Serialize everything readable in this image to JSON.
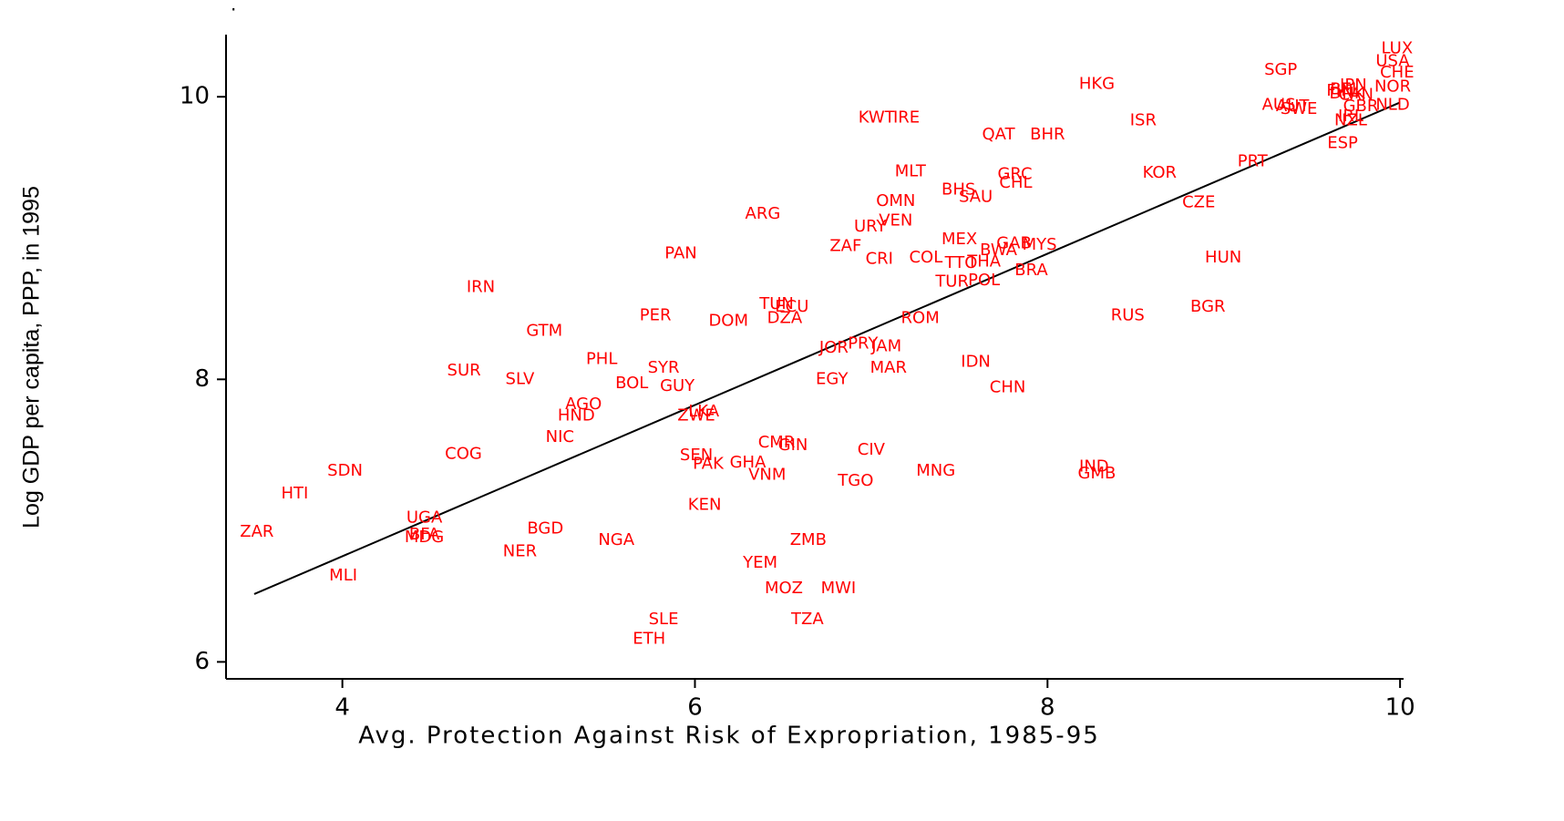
{
  "chart_data": {
    "type": "scatter",
    "title": ".",
    "x_label": "Avg. Protection Against Risk of Expropriation, 1985-95",
    "y_label": "Log GDP per capita, PPP, in 1995",
    "xlim": [
      3.34,
      10.02
    ],
    "ylim": [
      5.88,
      10.44
    ],
    "xticks": [
      4,
      6,
      8,
      10
    ],
    "yticks": [
      6,
      8,
      10
    ],
    "color": "#ff0000",
    "fit_color": "#000000",
    "fit": {
      "x": [
        3.5,
        10
      ],
      "y": [
        6.48,
        9.96
      ]
    },
    "labels": [
      "ZAR",
      "HTI",
      "SDN",
      "MLI",
      "UGA",
      "BFA",
      "MDG",
      "COG",
      "IRN",
      "SUR",
      "SLV",
      "GTM",
      "NER",
      "BGD",
      "NIC",
      "AGO",
      "HND",
      "PHL",
      "PER",
      "BOL",
      "SYR",
      "GUY",
      "NGA",
      "PAN",
      "DOM",
      "ZWE",
      "LKA",
      "SEN",
      "PAK",
      "GHA",
      "KEN",
      "VNM",
      "CMR",
      "GIN",
      "SLE",
      "ETH",
      "YEM",
      "MOZ",
      "MWI",
      "ZMB",
      "TZA",
      "ARG",
      "TUN",
      "ECU",
      "DZA",
      "EGY",
      "JOR",
      "PRY",
      "JAM",
      "MAR",
      "TGO",
      "CIV",
      "MNG",
      "ZAF",
      "CRI",
      "URY",
      "VEN",
      "OMN",
      "MLT",
      "KWT",
      "IRE",
      "ROM",
      "COL",
      "TTO",
      "THA",
      "TUR",
      "POL",
      "MEX",
      "BWA",
      "GAB",
      "MYS",
      "BRA",
      "IDN",
      "CHN",
      "BHS",
      "SAU",
      "GRC",
      "CHL",
      "QAT",
      "BHR",
      "HKG",
      "ISR",
      "KOR",
      "IND",
      "GMB",
      "RUS",
      "CZE",
      "BGR",
      "HUN",
      "PRT",
      "SGP",
      "AUS",
      "AUT",
      "SWE",
      "ESP",
      "LUX",
      "USA",
      "CHE",
      "NOR",
      "NZL",
      "IRL",
      "JPN",
      "FIN",
      "DNK",
      "BEL",
      "CAN",
      "GBR",
      "NLD"
    ],
    "x": [
      3.515,
      3.73,
      4.015,
      4.005,
      4.465,
      4.465,
      4.465,
      4.687,
      4.785,
      4.69,
      5.007,
      5.146,
      5.007,
      5.151,
      5.234,
      5.368,
      5.327,
      5.471,
      5.776,
      5.642,
      5.822,
      5.9,
      5.554,
      5.92,
      6.19,
      6.008,
      6.05,
      6.008,
      6.075,
      6.3,
      6.055,
      6.41,
      6.463,
      6.556,
      5.822,
      5.74,
      6.37,
      6.504,
      6.814,
      6.643,
      6.638,
      6.385,
      6.463,
      6.55,
      6.509,
      6.777,
      6.788,
      6.953,
      7.087,
      7.098,
      6.912,
      7.0,
      7.366,
      6.855,
      7.046,
      6.994,
      7.139,
      7.139,
      7.222,
      7.03,
      7.2,
      7.278,
      7.31,
      7.51,
      7.64,
      7.459,
      7.64,
      7.5,
      7.722,
      7.81,
      7.955,
      7.908,
      7.593,
      7.774,
      7.495,
      7.593,
      7.815,
      7.82,
      7.722,
      8.0,
      8.28,
      8.543,
      8.636,
      8.264,
      8.28,
      8.455,
      8.858,
      8.91,
      8.997,
      9.163,
      9.323,
      9.312,
      9.39,
      9.426,
      9.674,
      9.983,
      9.958,
      9.983,
      9.958,
      9.72,
      9.72,
      9.735,
      9.658,
      9.7,
      9.69,
      9.75,
      9.777,
      9.958
    ],
    "y": [
      6.92,
      7.19,
      7.35,
      6.61,
      7.02,
      6.9,
      6.88,
      7.47,
      8.65,
      8.06,
      8.0,
      8.34,
      6.78,
      6.94,
      7.59,
      7.82,
      7.74,
      8.14,
      8.45,
      7.97,
      8.08,
      7.95,
      6.86,
      8.89,
      8.41,
      7.74,
      7.77,
      7.46,
      7.4,
      7.41,
      7.11,
      7.32,
      7.55,
      7.53,
      6.3,
      6.16,
      6.7,
      6.52,
      6.52,
      6.86,
      6.3,
      9.17,
      8.53,
      8.51,
      8.43,
      8.0,
      8.22,
      8.25,
      8.23,
      8.08,
      7.28,
      7.5,
      7.35,
      8.94,
      8.85,
      9.08,
      9.12,
      9.26,
      9.47,
      9.85,
      9.85,
      8.43,
      8.86,
      8.82,
      8.83,
      8.69,
      8.7,
      8.99,
      8.91,
      8.96,
      8.95,
      8.77,
      8.12,
      7.94,
      9.34,
      9.29,
      9.45,
      9.39,
      9.73,
      9.73,
      10.09,
      9.83,
      9.46,
      7.38,
      7.33,
      8.45,
      9.25,
      8.51,
      8.86,
      9.54,
      10.19,
      9.94,
      9.93,
      9.91,
      9.67,
      10.34,
      10.25,
      10.17,
      10.07,
      9.83,
      9.86,
      10.08,
      10.04,
      10.02,
      10.05,
      10.01,
      9.93,
      9.94
    ]
  }
}
